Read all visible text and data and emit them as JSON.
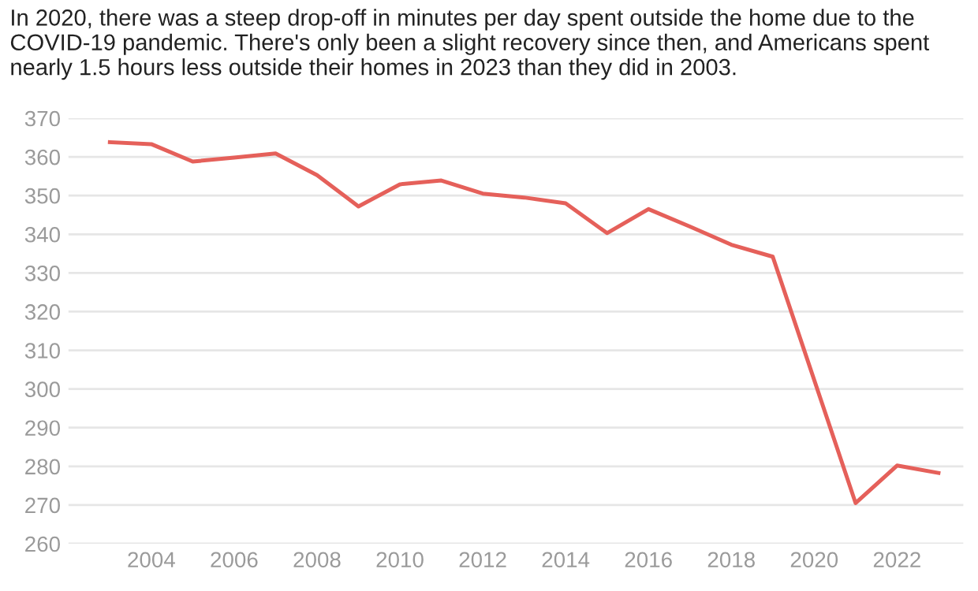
{
  "chart_data": {
    "type": "line",
    "subtitle": "In 2020, there was a steep drop-off in minutes per day spent outside the home due to the COVID-19 pandemic. There's only been a slight recovery since then, and Americans spent nearly 1.5 hours less outside their homes in 2023 than they did in 2003.",
    "x": [
      2003,
      2004,
      2005,
      2006,
      2007,
      2008,
      2009,
      2010,
      2011,
      2012,
      2013,
      2014,
      2015,
      2016,
      2017,
      2018,
      2019,
      2021,
      2022,
      2023
    ],
    "series": [
      {
        "color": "#e5605a",
        "values": [
          363.8,
          363.3,
          358.8,
          359.8,
          360.9,
          355.3,
          347.2,
          352.9,
          353.9,
          350.5,
          349.5,
          348.0,
          340.3,
          346.5,
          342.0,
          337.3,
          334.2,
          270.5,
          280.2,
          278.3
        ]
      }
    ],
    "xlim": [
      2002,
      2023.6
    ],
    "xticks": [
      2004,
      2006,
      2008,
      2010,
      2012,
      2014,
      2016,
      2018,
      2020,
      2022
    ],
    "ylim": [
      260,
      370
    ],
    "yticks": [
      260,
      270,
      280,
      290,
      300,
      310,
      320,
      330,
      340,
      350,
      360,
      370
    ],
    "grid": "y",
    "marker": "none",
    "line_style": "solid"
  }
}
